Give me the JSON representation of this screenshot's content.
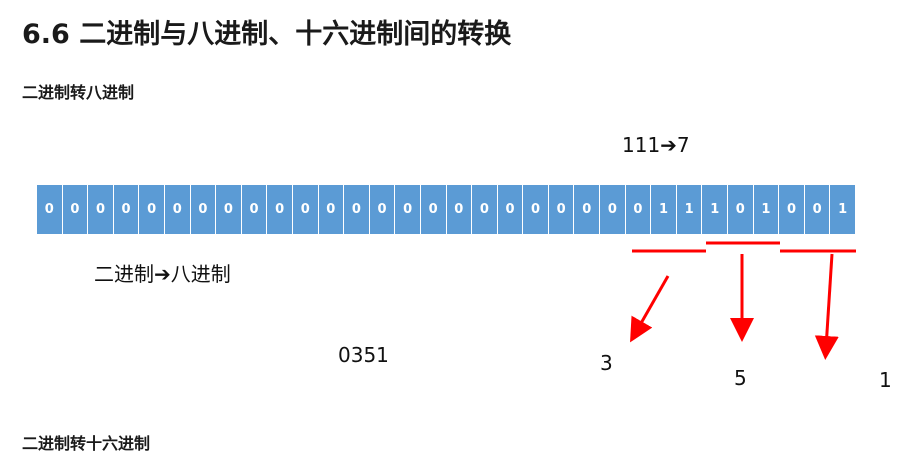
{
  "title": "6.6 二进制与八进制、十六进制间的转换",
  "section_oct": "二进制转八进制",
  "rule_label": "111➔7",
  "bits": [
    "0",
    "0",
    "0",
    "0",
    "0",
    "0",
    "0",
    "0",
    "0",
    "0",
    "0",
    "0",
    "0",
    "0",
    "0",
    "0",
    "0",
    "0",
    "0",
    "0",
    "0",
    "0",
    "0",
    "0",
    "1",
    "1",
    "1",
    "0",
    "1",
    "0",
    "0",
    "1"
  ],
  "method_label": "二进制➔八进制",
  "result": "0351",
  "group_digits": [
    "3",
    "5",
    "1"
  ],
  "section_hex": "二进制转十六进制",
  "colors": {
    "bit_fill": "#5b9bd5",
    "arrow": "#ff0000"
  }
}
